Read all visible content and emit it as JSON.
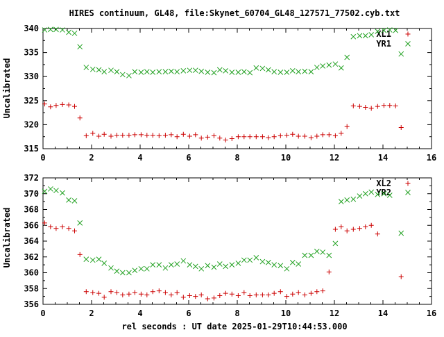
{
  "title": "HIRES continuum, GL48, file:Skynet_60704_GL48_127571_77502.cyb.txt",
  "xlabel": "rel seconds : UT date 2025-01-29T10:44:53.000",
  "colors": {
    "red": "#cc0000",
    "green": "#20a020"
  },
  "chart_data": [
    {
      "type": "scatter",
      "ylabel": "Uncalibrated",
      "xlim": [
        0,
        16
      ],
      "ylim": [
        315,
        340
      ],
      "xticks": [
        0,
        2,
        4,
        6,
        8,
        10,
        12,
        14,
        16
      ],
      "yticks": [
        315,
        320,
        325,
        330,
        335,
        340
      ],
      "legend_position": "top-right",
      "series": [
        {
          "name": "XL1",
          "marker": "plus",
          "color": "#cc0000",
          "x": [
            0.07,
            0.31,
            0.54,
            0.8,
            1.06,
            1.3,
            1.52,
            1.78,
            2.05,
            2.3,
            2.52,
            2.8,
            3.04,
            3.28,
            3.54,
            3.78,
            4.04,
            4.28,
            4.52,
            4.78,
            5.04,
            5.28,
            5.52,
            5.78,
            6.04,
            6.28,
            6.52,
            6.78,
            7.04,
            7.28,
            7.52,
            7.78,
            8.04,
            8.28,
            8.52,
            8.78,
            9.04,
            9.28,
            9.52,
            9.78,
            10.04,
            10.28,
            10.52,
            10.78,
            11.04,
            11.28,
            11.52,
            11.78,
            12.04,
            12.28,
            12.52,
            12.78,
            13.04,
            13.28,
            13.52,
            13.78,
            14.04,
            14.28,
            14.52,
            14.75,
            15.04
          ],
          "y": [
            324.3,
            323.7,
            324.0,
            324.2,
            324.1,
            323.8,
            321.4,
            317.7,
            318.2,
            317.6,
            318.0,
            317.6,
            317.8,
            317.8,
            317.8,
            317.9,
            317.9,
            317.8,
            317.8,
            317.7,
            317.8,
            317.9,
            317.5,
            318.0,
            317.6,
            317.9,
            317.2,
            317.4,
            317.7,
            317.2,
            316.8,
            317.1,
            317.5,
            317.5,
            317.5,
            317.5,
            317.5,
            317.3,
            317.5,
            317.7,
            317.8,
            318.0,
            317.6,
            317.6,
            317.3,
            317.6,
            317.9,
            317.9,
            317.7,
            318.2,
            319.6,
            323.9,
            323.8,
            323.6,
            323.4,
            323.8,
            324.0,
            324.0,
            323.9,
            319.4,
            null
          ]
        },
        {
          "name": "YR1",
          "marker": "cross",
          "color": "#20a020",
          "x": [
            0.07,
            0.31,
            0.54,
            0.8,
            1.06,
            1.3,
            1.52,
            1.78,
            2.05,
            2.3,
            2.52,
            2.8,
            3.04,
            3.28,
            3.54,
            3.78,
            4.04,
            4.28,
            4.52,
            4.78,
            5.04,
            5.28,
            5.52,
            5.78,
            6.04,
            6.28,
            6.52,
            6.78,
            7.04,
            7.28,
            7.52,
            7.78,
            8.04,
            8.28,
            8.52,
            8.78,
            9.04,
            9.28,
            9.52,
            9.78,
            10.04,
            10.28,
            10.52,
            10.78,
            11.04,
            11.28,
            11.52,
            11.78,
            12.04,
            12.28,
            12.52,
            12.78,
            13.04,
            13.28,
            13.52,
            13.78,
            14.04,
            14.28,
            14.52,
            14.75,
            15.04
          ],
          "y": [
            339.7,
            339.8,
            339.8,
            339.7,
            339.2,
            339.0,
            336.2,
            331.9,
            331.5,
            331.4,
            331.0,
            331.3,
            331.0,
            330.4,
            330.2,
            331.0,
            330.9,
            331.0,
            330.9,
            331.0,
            331.0,
            331.1,
            331.0,
            331.2,
            331.3,
            331.3,
            331.1,
            330.9,
            330.8,
            331.4,
            331.2,
            330.9,
            330.9,
            331.0,
            330.8,
            331.8,
            331.7,
            331.4,
            331.0,
            330.9,
            330.9,
            331.2,
            331.0,
            331.1,
            331.0,
            331.9,
            332.2,
            332.4,
            332.6,
            331.8,
            334.0,
            338.3,
            338.5,
            338.5,
            338.7,
            339.4,
            339.6,
            339.7,
            339.6,
            334.7,
            null
          ]
        }
      ]
    },
    {
      "type": "scatter",
      "ylabel": "Uncalibrated",
      "xlim": [
        0,
        16
      ],
      "ylim": [
        356,
        372
      ],
      "xticks": [
        0,
        2,
        4,
        6,
        8,
        10,
        12,
        14,
        16
      ],
      "yticks": [
        356,
        358,
        360,
        362,
        364,
        366,
        368,
        370,
        372
      ],
      "legend_position": "top-right",
      "series": [
        {
          "name": "XL2",
          "marker": "plus",
          "color": "#cc0000",
          "x": [
            0.07,
            0.31,
            0.54,
            0.8,
            1.06,
            1.3,
            1.52,
            1.78,
            2.05,
            2.3,
            2.52,
            2.8,
            3.04,
            3.28,
            3.54,
            3.78,
            4.04,
            4.28,
            4.52,
            4.78,
            5.04,
            5.28,
            5.52,
            5.78,
            6.04,
            6.28,
            6.52,
            6.78,
            7.04,
            7.28,
            7.52,
            7.78,
            8.04,
            8.28,
            8.52,
            8.78,
            9.04,
            9.28,
            9.52,
            9.78,
            10.04,
            10.28,
            10.52,
            10.78,
            11.04,
            11.28,
            11.52,
            11.78,
            12.04,
            12.28,
            12.52,
            12.78,
            13.04,
            13.28,
            13.52,
            13.78,
            14.04,
            14.28,
            14.52,
            14.75,
            15.04
          ],
          "y": [
            366.3,
            365.8,
            365.6,
            365.8,
            365.6,
            365.3,
            362.3,
            357.6,
            357.5,
            357.4,
            356.9,
            357.6,
            357.5,
            357.2,
            357.3,
            357.5,
            357.3,
            357.2,
            357.6,
            357.7,
            357.5,
            357.2,
            357.5,
            356.9,
            357.1,
            357.0,
            357.2,
            356.7,
            356.8,
            357.1,
            357.4,
            357.3,
            357.1,
            357.5,
            357.1,
            357.2,
            357.2,
            357.2,
            357.4,
            357.6,
            357.0,
            357.3,
            357.5,
            357.2,
            357.4,
            357.6,
            357.7,
            360.1,
            365.5,
            365.8,
            365.3,
            365.5,
            365.6,
            365.8,
            366.0,
            364.9,
            null,
            null,
            null,
            359.5,
            null
          ]
        },
        {
          "name": "YR2",
          "marker": "cross",
          "color": "#20a020",
          "x": [
            0.07,
            0.31,
            0.54,
            0.8,
            1.06,
            1.3,
            1.52,
            1.78,
            2.05,
            2.3,
            2.52,
            2.8,
            3.04,
            3.28,
            3.54,
            3.78,
            4.04,
            4.28,
            4.52,
            4.78,
            5.04,
            5.28,
            5.52,
            5.78,
            6.04,
            6.28,
            6.52,
            6.78,
            7.04,
            7.28,
            7.52,
            7.78,
            8.04,
            8.28,
            8.52,
            8.78,
            9.04,
            9.28,
            9.52,
            9.78,
            10.04,
            10.28,
            10.52,
            10.78,
            11.04,
            11.28,
            11.52,
            11.78,
            12.04,
            12.28,
            12.52,
            12.78,
            13.04,
            13.28,
            13.52,
            13.78,
            14.04,
            14.28,
            14.52,
            14.75,
            15.04
          ],
          "y": [
            370.3,
            370.6,
            370.4,
            370.1,
            369.2,
            369.1,
            366.3,
            361.7,
            361.6,
            361.7,
            361.2,
            360.6,
            360.2,
            360.0,
            360.0,
            360.3,
            360.5,
            360.5,
            361.0,
            361.0,
            360.6,
            361.0,
            361.1,
            361.5,
            361.0,
            360.8,
            360.5,
            360.9,
            360.7,
            361.1,
            360.8,
            361.0,
            361.2,
            361.6,
            361.6,
            361.9,
            361.4,
            361.3,
            361.0,
            360.9,
            360.5,
            361.3,
            361.1,
            362.2,
            362.2,
            362.7,
            362.6,
            362.2,
            363.7,
            369.0,
            369.2,
            369.3,
            369.7,
            370.0,
            370.2,
            369.9,
            370.0,
            369.8,
            null,
            365.0,
            null
          ]
        }
      ]
    }
  ]
}
